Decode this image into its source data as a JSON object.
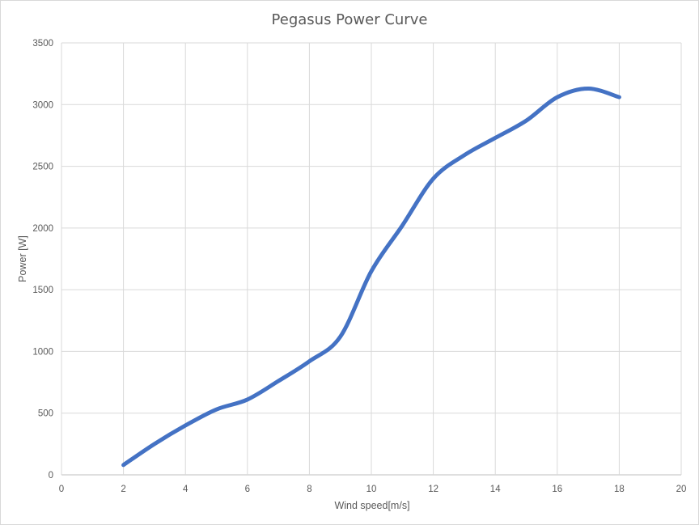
{
  "chart_data": {
    "type": "line",
    "title": "Pegasus Power Curve",
    "xlabel": "Wind speed[m/s]",
    "ylabel": "Power [W]",
    "xlim": [
      0,
      20
    ],
    "ylim": [
      0,
      3500
    ],
    "xticks": [
      0,
      2,
      4,
      6,
      8,
      10,
      12,
      14,
      16,
      18,
      20
    ],
    "yticks": [
      0,
      500,
      1000,
      1500,
      2000,
      2500,
      3000,
      3500
    ],
    "grid": true,
    "legend": "none",
    "series": [
      {
        "color": "#4472c4",
        "smooth": true,
        "x": [
          2,
          3,
          4,
          5,
          6,
          7,
          8,
          9,
          10,
          11,
          12,
          13,
          14,
          15,
          16,
          17,
          18
        ],
        "y": [
          80,
          250,
          400,
          530,
          610,
          760,
          920,
          1120,
          1650,
          2020,
          2400,
          2590,
          2730,
          2870,
          3060,
          3130,
          3060
        ]
      }
    ]
  }
}
